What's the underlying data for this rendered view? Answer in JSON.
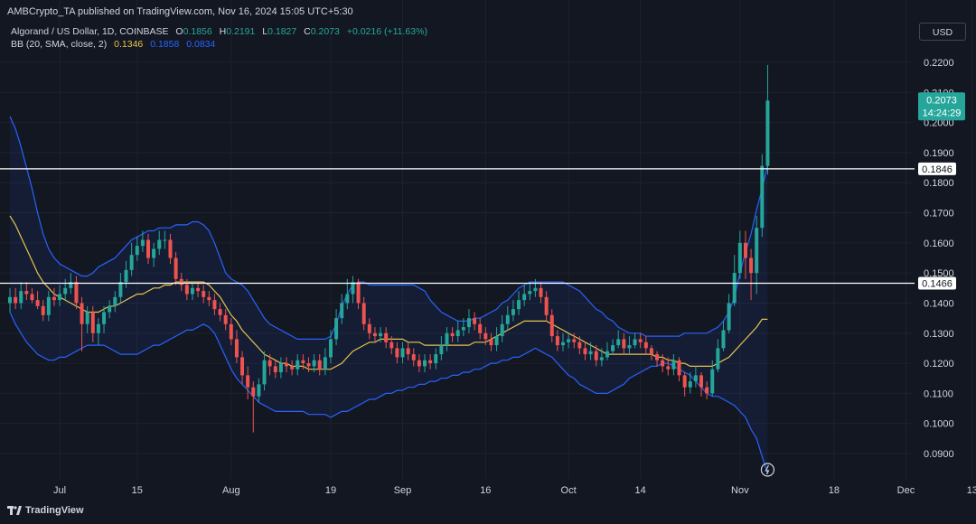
{
  "header": {
    "publisher_line": "AMBCrypto_TA published on TradingView.com, Nov 16, 2024 15:05 UTC+5:30"
  },
  "legend": {
    "symbol": "Algorand / US Dollar, 1D, COINBASE",
    "open_label": "O",
    "open_value": "0.1856",
    "high_label": "H",
    "high_value": "0.2191",
    "low_label": "L",
    "low_value": "0.1827",
    "close_label": "C",
    "close_value": "0.2073",
    "change": "+0.0216 (+11.63%)",
    "bb_label": "BB (20, SMA, close, 2)",
    "bb_basis": "0.1346",
    "bb_upper": "0.1858",
    "bb_lower": "0.0834"
  },
  "toolbar": {
    "currency": "USD"
  },
  "footer": {
    "brand": "TradingView"
  },
  "colors": {
    "bull": "#26a69a",
    "bear": "#ef5350",
    "bb_band": "#2962ff",
    "bb_basis": "#e8c34d",
    "hline": "#ffffff",
    "price_tag": "#26a69a"
  },
  "chart_data": {
    "type": "candlestick",
    "y_ticks": [
      "0.2200",
      "0.2100",
      "0.2000",
      "0.1900",
      "0.1800",
      "0.1700",
      "0.1600",
      "0.1500",
      "0.1400",
      "0.1300",
      "0.1200",
      "0.1100",
      "0.1000",
      "0.0900"
    ],
    "ylim": [
      0.0855,
      0.224
    ],
    "x_ticks": [
      "Jul",
      "15",
      "Aug",
      "19",
      "Sep",
      "16",
      "Oct",
      "14",
      "Nov",
      "18",
      "Dec",
      "13"
    ],
    "x_tick_dates": [
      "2024-07-01",
      "2024-07-15",
      "2024-08-01",
      "2024-08-19",
      "2024-09-01",
      "2024-09-16",
      "2024-10-01",
      "2024-10-14",
      "2024-11-01",
      "2024-11-18",
      "2024-12-01",
      "2024-12-13"
    ],
    "horizontal_lines": [
      {
        "label": "0.1846",
        "value": 0.1846
      },
      {
        "label": "0.1466",
        "value": 0.1466
      }
    ],
    "last_price": {
      "value": "0.2073",
      "countdown": "14:24:29"
    },
    "first_date": "2024-06-22",
    "close": [
      0.142,
      0.14,
      0.144,
      0.143,
      0.141,
      0.139,
      0.136,
      0.142,
      0.141,
      0.143,
      0.145,
      0.147,
      0.14,
      0.133,
      0.137,
      0.13,
      0.133,
      0.137,
      0.139,
      0.142,
      0.147,
      0.151,
      0.156,
      0.159,
      0.161,
      0.155,
      0.158,
      0.161,
      0.161,
      0.155,
      0.148,
      0.146,
      0.143,
      0.145,
      0.144,
      0.142,
      0.141,
      0.138,
      0.136,
      0.133,
      0.128,
      0.122,
      0.116,
      0.112,
      0.109,
      0.113,
      0.121,
      0.119,
      0.117,
      0.12,
      0.119,
      0.118,
      0.121,
      0.12,
      0.119,
      0.121,
      0.118,
      0.122,
      0.128,
      0.135,
      0.14,
      0.143,
      0.147,
      0.14,
      0.133,
      0.13,
      0.129,
      0.13,
      0.127,
      0.125,
      0.122,
      0.125,
      0.123,
      0.121,
      0.119,
      0.121,
      0.12,
      0.123,
      0.126,
      0.13,
      0.129,
      0.131,
      0.132,
      0.135,
      0.133,
      0.13,
      0.128,
      0.126,
      0.129,
      0.133,
      0.136,
      0.138,
      0.141,
      0.143,
      0.144,
      0.145,
      0.142,
      0.136,
      0.129,
      0.126,
      0.127,
      0.128,
      0.127,
      0.125,
      0.123,
      0.124,
      0.121,
      0.122,
      0.124,
      0.126,
      0.128,
      0.125,
      0.126,
      0.128,
      0.127,
      0.125,
      0.123,
      0.121,
      0.119,
      0.118,
      0.121,
      0.116,
      0.112,
      0.114,
      0.116,
      0.112,
      0.11,
      0.118,
      0.125,
      0.131,
      0.14,
      0.15,
      0.16,
      0.155,
      0.15,
      0.165,
      0.1856,
      0.2073
    ],
    "open": [
      0.14,
      0.142,
      0.14,
      0.144,
      0.143,
      0.141,
      0.139,
      0.136,
      0.142,
      0.141,
      0.143,
      0.145,
      0.147,
      0.14,
      0.133,
      0.137,
      0.13,
      0.133,
      0.137,
      0.139,
      0.142,
      0.147,
      0.151,
      0.156,
      0.159,
      0.161,
      0.155,
      0.158,
      0.161,
      0.161,
      0.155,
      0.148,
      0.146,
      0.143,
      0.145,
      0.144,
      0.142,
      0.141,
      0.138,
      0.136,
      0.133,
      0.128,
      0.122,
      0.116,
      0.112,
      0.109,
      0.113,
      0.121,
      0.119,
      0.117,
      0.12,
      0.119,
      0.118,
      0.121,
      0.12,
      0.119,
      0.121,
      0.118,
      0.122,
      0.128,
      0.135,
      0.14,
      0.143,
      0.147,
      0.14,
      0.133,
      0.13,
      0.129,
      0.13,
      0.127,
      0.125,
      0.122,
      0.125,
      0.123,
      0.121,
      0.119,
      0.121,
      0.12,
      0.123,
      0.126,
      0.13,
      0.129,
      0.131,
      0.132,
      0.135,
      0.133,
      0.13,
      0.128,
      0.126,
      0.129,
      0.133,
      0.136,
      0.138,
      0.141,
      0.143,
      0.144,
      0.145,
      0.142,
      0.136,
      0.129,
      0.126,
      0.127,
      0.128,
      0.127,
      0.125,
      0.123,
      0.124,
      0.121,
      0.122,
      0.124,
      0.126,
      0.128,
      0.125,
      0.126,
      0.128,
      0.127,
      0.125,
      0.123,
      0.121,
      0.119,
      0.118,
      0.121,
      0.116,
      0.112,
      0.114,
      0.116,
      0.112,
      0.11,
      0.118,
      0.125,
      0.131,
      0.14,
      0.15,
      0.16,
      0.155,
      0.15,
      0.165,
      0.1856
    ],
    "high": [
      0.145,
      0.145,
      0.147,
      0.147,
      0.145,
      0.144,
      0.141,
      0.144,
      0.145,
      0.146,
      0.148,
      0.15,
      0.149,
      0.142,
      0.139,
      0.139,
      0.135,
      0.139,
      0.141,
      0.144,
      0.15,
      0.154,
      0.16,
      0.162,
      0.164,
      0.163,
      0.16,
      0.164,
      0.164,
      0.163,
      0.157,
      0.15,
      0.148,
      0.147,
      0.147,
      0.146,
      0.144,
      0.143,
      0.14,
      0.138,
      0.135,
      0.131,
      0.124,
      0.119,
      0.114,
      0.115,
      0.124,
      0.123,
      0.121,
      0.122,
      0.122,
      0.121,
      0.123,
      0.123,
      0.122,
      0.123,
      0.123,
      0.125,
      0.131,
      0.138,
      0.143,
      0.148,
      0.149,
      0.148,
      0.142,
      0.135,
      0.132,
      0.132,
      0.132,
      0.129,
      0.127,
      0.127,
      0.127,
      0.125,
      0.123,
      0.123,
      0.123,
      0.125,
      0.129,
      0.132,
      0.132,
      0.134,
      0.135,
      0.138,
      0.137,
      0.135,
      0.132,
      0.13,
      0.132,
      0.136,
      0.139,
      0.141,
      0.144,
      0.146,
      0.147,
      0.148,
      0.147,
      0.144,
      0.138,
      0.131,
      0.13,
      0.13,
      0.13,
      0.129,
      0.127,
      0.127,
      0.126,
      0.125,
      0.127,
      0.128,
      0.131,
      0.13,
      0.129,
      0.13,
      0.13,
      0.129,
      0.126,
      0.124,
      0.123,
      0.122,
      0.123,
      0.122,
      0.117,
      0.117,
      0.119,
      0.117,
      0.114,
      0.121,
      0.128,
      0.134,
      0.143,
      0.156,
      0.164,
      0.164,
      0.158,
      0.169,
      0.1895,
      0.2191
    ],
    "low": [
      0.137,
      0.138,
      0.138,
      0.141,
      0.14,
      0.138,
      0.134,
      0.134,
      0.139,
      0.139,
      0.141,
      0.143,
      0.138,
      0.124,
      0.13,
      0.127,
      0.126,
      0.13,
      0.135,
      0.137,
      0.14,
      0.145,
      0.149,
      0.154,
      0.157,
      0.153,
      0.152,
      0.156,
      0.158,
      0.153,
      0.146,
      0.144,
      0.141,
      0.141,
      0.142,
      0.14,
      0.139,
      0.136,
      0.134,
      0.131,
      0.126,
      0.12,
      0.113,
      0.108,
      0.097,
      0.107,
      0.111,
      0.116,
      0.115,
      0.115,
      0.117,
      0.116,
      0.116,
      0.118,
      0.117,
      0.117,
      0.116,
      0.116,
      0.12,
      0.126,
      0.133,
      0.138,
      0.14,
      0.138,
      0.131,
      0.128,
      0.127,
      0.127,
      0.125,
      0.123,
      0.12,
      0.12,
      0.121,
      0.119,
      0.117,
      0.117,
      0.118,
      0.118,
      0.121,
      0.124,
      0.127,
      0.127,
      0.129,
      0.13,
      0.131,
      0.128,
      0.126,
      0.124,
      0.124,
      0.127,
      0.131,
      0.134,
      0.136,
      0.139,
      0.141,
      0.142,
      0.14,
      0.134,
      0.127,
      0.124,
      0.124,
      0.125,
      0.125,
      0.123,
      0.121,
      0.121,
      0.119,
      0.119,
      0.121,
      0.123,
      0.125,
      0.123,
      0.123,
      0.125,
      0.125,
      0.123,
      0.121,
      0.119,
      0.117,
      0.116,
      0.116,
      0.114,
      0.109,
      0.11,
      0.112,
      0.109,
      0.108,
      0.109,
      0.117,
      0.124,
      0.13,
      0.139,
      0.148,
      0.148,
      0.141,
      0.143,
      0.162,
      0.1827
    ],
    "bb_upper": [
      0.202,
      0.198,
      0.192,
      0.185,
      0.178,
      0.17,
      0.163,
      0.158,
      0.155,
      0.153,
      0.152,
      0.151,
      0.15,
      0.149,
      0.149,
      0.15,
      0.152,
      0.153,
      0.154,
      0.155,
      0.157,
      0.159,
      0.161,
      0.162,
      0.163,
      0.164,
      0.164,
      0.165,
      0.165,
      0.165,
      0.166,
      0.166,
      0.166,
      0.167,
      0.167,
      0.166,
      0.164,
      0.16,
      0.155,
      0.15,
      0.148,
      0.147,
      0.146,
      0.144,
      0.141,
      0.138,
      0.135,
      0.133,
      0.132,
      0.131,
      0.13,
      0.129,
      0.128,
      0.128,
      0.128,
      0.128,
      0.128,
      0.128,
      0.129,
      0.133,
      0.139,
      0.143,
      0.146,
      0.147,
      0.147,
      0.146,
      0.146,
      0.146,
      0.146,
      0.146,
      0.146,
      0.146,
      0.146,
      0.146,
      0.145,
      0.144,
      0.141,
      0.139,
      0.137,
      0.136,
      0.135,
      0.134,
      0.134,
      0.134,
      0.135,
      0.135,
      0.136,
      0.137,
      0.138,
      0.14,
      0.141,
      0.143,
      0.145,
      0.146,
      0.147,
      0.147,
      0.147,
      0.147,
      0.147,
      0.147,
      0.147,
      0.146,
      0.145,
      0.144,
      0.142,
      0.14,
      0.138,
      0.137,
      0.135,
      0.134,
      0.132,
      0.131,
      0.13,
      0.13,
      0.13,
      0.129,
      0.129,
      0.129,
      0.129,
      0.129,
      0.129,
      0.129,
      0.13,
      0.13,
      0.13,
      0.13,
      0.13,
      0.131,
      0.132,
      0.134,
      0.137,
      0.142,
      0.15,
      0.157,
      0.163,
      0.171,
      0.178,
      0.1858
    ],
    "bb_lower": [
      0.137,
      0.133,
      0.13,
      0.127,
      0.125,
      0.123,
      0.122,
      0.121,
      0.121,
      0.122,
      0.122,
      0.123,
      0.124,
      0.125,
      0.126,
      0.126,
      0.126,
      0.126,
      0.125,
      0.124,
      0.123,
      0.123,
      0.123,
      0.123,
      0.124,
      0.125,
      0.126,
      0.126,
      0.127,
      0.128,
      0.129,
      0.13,
      0.131,
      0.131,
      0.132,
      0.133,
      0.132,
      0.13,
      0.126,
      0.122,
      0.118,
      0.115,
      0.113,
      0.111,
      0.109,
      0.107,
      0.106,
      0.105,
      0.104,
      0.104,
      0.104,
      0.104,
      0.104,
      0.104,
      0.103,
      0.103,
      0.103,
      0.103,
      0.102,
      0.103,
      0.104,
      0.104,
      0.105,
      0.106,
      0.107,
      0.108,
      0.108,
      0.109,
      0.11,
      0.11,
      0.111,
      0.111,
      0.112,
      0.112,
      0.113,
      0.113,
      0.114,
      0.114,
      0.115,
      0.115,
      0.116,
      0.116,
      0.117,
      0.117,
      0.118,
      0.118,
      0.119,
      0.12,
      0.12,
      0.121,
      0.121,
      0.122,
      0.122,
      0.123,
      0.124,
      0.125,
      0.124,
      0.123,
      0.122,
      0.12,
      0.118,
      0.116,
      0.115,
      0.113,
      0.112,
      0.111,
      0.11,
      0.11,
      0.11,
      0.111,
      0.112,
      0.113,
      0.115,
      0.116,
      0.117,
      0.118,
      0.119,
      0.119,
      0.12,
      0.12,
      0.119,
      0.118,
      0.117,
      0.116,
      0.114,
      0.112,
      0.11,
      0.109,
      0.109,
      0.108,
      0.107,
      0.106,
      0.104,
      0.102,
      0.098,
      0.095,
      0.089,
      0.0834
    ],
    "bb_basis": [
      0.169,
      0.166,
      0.162,
      0.158,
      0.154,
      0.15,
      0.147,
      0.145,
      0.143,
      0.142,
      0.141,
      0.14,
      0.139,
      0.138,
      0.137,
      0.137,
      0.137,
      0.138,
      0.139,
      0.139,
      0.14,
      0.141,
      0.142,
      0.143,
      0.143,
      0.144,
      0.145,
      0.145,
      0.146,
      0.146,
      0.147,
      0.147,
      0.147,
      0.147,
      0.147,
      0.147,
      0.146,
      0.144,
      0.142,
      0.139,
      0.136,
      0.134,
      0.131,
      0.129,
      0.127,
      0.125,
      0.123,
      0.122,
      0.121,
      0.12,
      0.12,
      0.119,
      0.119,
      0.119,
      0.118,
      0.118,
      0.118,
      0.118,
      0.118,
      0.119,
      0.12,
      0.122,
      0.124,
      0.125,
      0.126,
      0.127,
      0.127,
      0.128,
      0.128,
      0.128,
      0.128,
      0.128,
      0.127,
      0.127,
      0.127,
      0.126,
      0.126,
      0.126,
      0.126,
      0.126,
      0.126,
      0.126,
      0.126,
      0.126,
      0.127,
      0.127,
      0.127,
      0.128,
      0.129,
      0.13,
      0.131,
      0.132,
      0.133,
      0.134,
      0.134,
      0.134,
      0.134,
      0.134,
      0.133,
      0.132,
      0.131,
      0.13,
      0.129,
      0.128,
      0.127,
      0.126,
      0.125,
      0.124,
      0.123,
      0.123,
      0.123,
      0.123,
      0.123,
      0.123,
      0.123,
      0.123,
      0.123,
      0.122,
      0.122,
      0.121,
      0.121,
      0.12,
      0.12,
      0.119,
      0.119,
      0.119,
      0.119,
      0.119,
      0.12,
      0.121,
      0.122,
      0.124,
      0.126,
      0.128,
      0.13,
      0.132,
      0.1346,
      0.1346
    ]
  }
}
